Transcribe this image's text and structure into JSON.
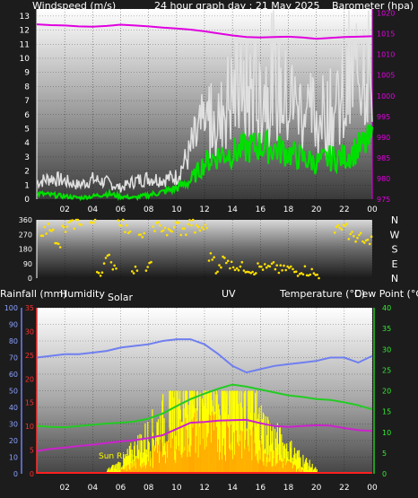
{
  "header": {
    "windspeed_label": "Windspeed (m/s)",
    "title": "24 hour graph day : 21 May 2025",
    "barometer_label": "Barometer (hpa)"
  },
  "labels": {
    "rainfall": "Rainfall (mm)",
    "humidity": "Humidity",
    "solar": "Solar",
    "uv": "UV",
    "temperature": "Temperature (°C)",
    "dewpoint": "Dew Point (°C)",
    "sunrise": "Sun Rise"
  },
  "colors": {
    "gust": "#e0e0e0",
    "wind": "#00e000",
    "barometer": "#e000e0",
    "direction": "#ffe000",
    "humidity": "#6f7ff0",
    "temperature": "#22cc22",
    "dewpoint": "#cc22cc",
    "solar": "#ffff00",
    "uv": "#ff9900",
    "rain": "#ff2020"
  },
  "x_ticks": [
    "02",
    "04",
    "06",
    "08",
    "10",
    "12",
    "14",
    "16",
    "18",
    "20",
    "22",
    "00"
  ],
  "chart_data": [
    {
      "type": "line",
      "title": "24 hour graph day : 21 May 2025",
      "xlabel": "",
      "ylabel": "Windspeed (m/s)",
      "y2label": "Barometer (hpa)",
      "x_hours": [
        0,
        1,
        2,
        3,
        4,
        5,
        6,
        7,
        8,
        9,
        10,
        11,
        12,
        13,
        14,
        15,
        16,
        17,
        18,
        19,
        20,
        21,
        22,
        23,
        24
      ],
      "ylim": [
        0,
        13.5
      ],
      "y_ticks": [
        0,
        1,
        2,
        3,
        4,
        5,
        6,
        7,
        8,
        9,
        10,
        11,
        12,
        13
      ],
      "y2lim": [
        975,
        1021
      ],
      "y2_ticks": [
        975,
        980,
        985,
        990,
        995,
        1000,
        1005,
        1010,
        1015,
        1020
      ],
      "series": [
        {
          "name": "Gust",
          "axis": "left",
          "values": [
            1.2,
            1.5,
            1.3,
            1.0,
            1.4,
            1.2,
            0.8,
            1.3,
            1.5,
            1.4,
            1.6,
            3.4,
            5.2,
            6.5,
            7.3,
            7.5,
            7.8,
            8.3,
            6.8,
            6.5,
            5.8,
            6.0,
            6.8,
            9.5,
            10.5
          ]
        },
        {
          "name": "Wind",
          "axis": "left",
          "values": [
            0.4,
            0.3,
            0.2,
            0.1,
            0.2,
            0.4,
            0.2,
            0.1,
            0.3,
            0.5,
            0.8,
            1.3,
            2.6,
            3.1,
            3.3,
            3.6,
            3.8,
            3.6,
            3.3,
            2.9,
            2.6,
            2.9,
            3.0,
            3.6,
            4.2
          ]
        },
        {
          "name": "Barometer",
          "axis": "right",
          "values": [
            1017.3,
            1017.1,
            1017.0,
            1016.8,
            1016.7,
            1016.9,
            1017.2,
            1017.0,
            1016.8,
            1016.5,
            1016.3,
            1016.0,
            1015.6,
            1015.1,
            1014.6,
            1014.2,
            1014.1,
            1014.2,
            1014.3,
            1014.1,
            1013.8,
            1014.0,
            1014.2,
            1014.3,
            1014.4
          ]
        }
      ]
    },
    {
      "type": "scatter",
      "ylabel": "Wind direction",
      "ylim": [
        0,
        360
      ],
      "y_ticks": [
        0,
        45,
        90,
        135,
        180,
        225,
        270,
        315,
        360
      ],
      "y_right_labels": [
        "N",
        "W",
        "S",
        "E",
        "N"
      ],
      "series": [
        {
          "name": "Direction",
          "x_hours": [
            0.5,
            1.0,
            1.5,
            2.0,
            2.5,
            3.0,
            4.0,
            4.5,
            5.0,
            5.5,
            6.0,
            6.5,
            7.0,
            7.5,
            8.0,
            8.5,
            9.0,
            9.5,
            10.0,
            10.5,
            11.0,
            11.5,
            12.0,
            12.5,
            13.0,
            13.5,
            14.0,
            14.5,
            15.0,
            15.5,
            16.0,
            16.5,
            17.0,
            17.5,
            18.0,
            18.5,
            19.0,
            19.5,
            20.0,
            21.5,
            22.0,
            22.5,
            23.0,
            23.5,
            24.0
          ],
          "values": [
            290,
            320,
            200,
            300,
            330,
            350,
            340,
            40,
            120,
            80,
            350,
            300,
            60,
            250,
            70,
            320,
            310,
            280,
            330,
            290,
            340,
            300,
            310,
            130,
            60,
            120,
            80,
            70,
            60,
            50,
            70,
            60,
            70,
            50,
            60,
            40,
            50,
            40,
            20,
            300,
            330,
            260,
            250,
            220,
            240
          ]
        }
      ]
    },
    {
      "type": "line",
      "ylabel": "Rainfall (mm)",
      "ylim": [
        0,
        100
      ],
      "y_ticks_humidity": [
        0,
        10,
        20,
        30,
        40,
        50,
        60,
        70,
        80,
        90,
        100
      ],
      "y_ticks_rain": [
        0,
        5,
        10,
        15,
        20,
        25,
        30,
        35
      ],
      "y_ticks_temperature": [
        0,
        5,
        10,
        15,
        20,
        25,
        30,
        35,
        40
      ],
      "x_hours": [
        0,
        1,
        2,
        3,
        4,
        5,
        6,
        7,
        8,
        9,
        10,
        11,
        12,
        13,
        14,
        15,
        16,
        17,
        18,
        19,
        20,
        21,
        22,
        23,
        24
      ],
      "series": [
        {
          "name": "Humidity",
          "unit": "%",
          "values": [
            70,
            71,
            72,
            72,
            73,
            74,
            76,
            77,
            78,
            80,
            81,
            81,
            78,
            72,
            65,
            61,
            63,
            65,
            66,
            67,
            68,
            70,
            70,
            67,
            71
          ]
        },
        {
          "name": "Temperature",
          "unit": "°C",
          "values": [
            11.5,
            11.3,
            11.2,
            11.5,
            11.8,
            12.1,
            12.3,
            12.6,
            13.3,
            14.5,
            16.3,
            18.0,
            19.3,
            20.5,
            21.5,
            21.0,
            20.3,
            19.6,
            18.9,
            18.5,
            18.0,
            17.8,
            17.2,
            16.5,
            15.5
          ]
        },
        {
          "name": "Dew Point",
          "unit": "°C",
          "values": [
            5.5,
            6.0,
            6.3,
            6.7,
            7.0,
            7.4,
            7.8,
            8.1,
            8.6,
            9.3,
            10.8,
            12.3,
            12.5,
            12.8,
            12.9,
            13.0,
            12.2,
            11.5,
            11.3,
            11.5,
            11.7,
            11.6,
            11.0,
            10.5,
            10.3
          ]
        },
        {
          "name": "Solar",
          "unit": "%",
          "values": [
            0,
            0,
            0,
            0,
            0,
            2,
            6,
            14,
            22,
            30,
            40,
            46,
            50,
            42,
            48,
            40,
            28,
            20,
            14,
            8,
            2,
            0,
            0,
            0,
            0
          ]
        },
        {
          "name": "UV",
          "unit": "%",
          "values": [
            0,
            0,
            0,
            0,
            0,
            0,
            2,
            6,
            10,
            16,
            22,
            26,
            28,
            24,
            26,
            22,
            16,
            10,
            6,
            2,
            0,
            0,
            0,
            0,
            0
          ]
        },
        {
          "name": "Rainfall",
          "unit": "mm",
          "values": [
            0,
            0,
            0,
            0,
            0,
            0,
            0,
            0,
            0,
            0,
            0,
            0,
            0,
            0,
            0,
            0,
            0,
            0,
            0,
            0,
            0,
            0,
            0,
            0,
            0
          ]
        }
      ]
    }
  ]
}
